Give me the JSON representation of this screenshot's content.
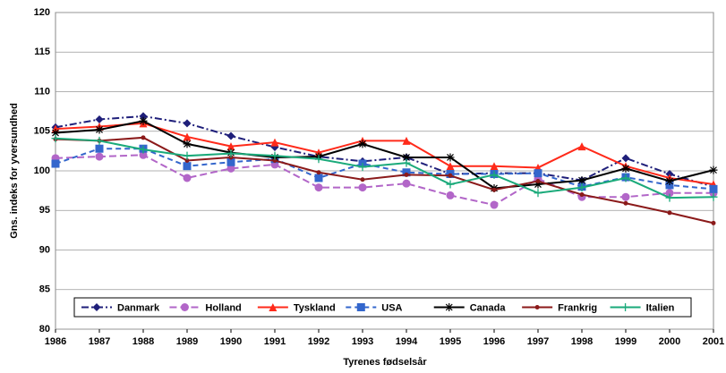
{
  "chart_data": {
    "type": "line",
    "x_label": "Tyrenes fødselsår",
    "y_label": "Gns. indeks for yversundhed",
    "x": [
      1986,
      1987,
      1988,
      1989,
      1990,
      1991,
      1992,
      1993,
      1994,
      1995,
      1996,
      1997,
      1998,
      1999,
      2000,
      2001
    ],
    "xlim": [
      1986,
      2001
    ],
    "xticks": [
      1986,
      1987,
      1988,
      1989,
      1990,
      1991,
      1992,
      1993,
      1994,
      1995,
      1996,
      1997,
      1998,
      1999,
      2000,
      2001
    ],
    "ylim": [
      80,
      120
    ],
    "yticks": [
      80,
      85,
      90,
      95,
      100,
      105,
      110,
      115,
      120
    ],
    "grid": true,
    "legend": "bottom",
    "series": [
      {
        "name": "Danmark",
        "color": "#1f1f7a",
        "marker": "diamond",
        "dash": "8,3,2,3",
        "values": [
          105.5,
          106.5,
          106.9,
          106,
          104.4,
          103,
          101.8,
          101.2,
          101.7,
          99.6,
          99.7,
          99.7,
          98.8,
          101.6,
          99.6,
          98
        ]
      },
      {
        "name": "Holland",
        "color": "#b266c8",
        "marker": "circle",
        "dash": "8,4",
        "values": [
          101.6,
          101.8,
          102,
          99.1,
          100.3,
          100.8,
          97.9,
          97.9,
          98.4,
          96.9,
          95.7,
          99,
          96.7,
          96.7,
          97.2,
          97.2
        ]
      },
      {
        "name": "Tyskland",
        "color": "#ff2a1a",
        "marker": "triangle",
        "dash": "",
        "values": [
          105.3,
          105.6,
          106,
          104.3,
          103.1,
          103.6,
          102.3,
          103.8,
          103.8,
          100.6,
          100.6,
          100.4,
          103.1,
          100.6,
          99.1,
          98.3
        ]
      },
      {
        "name": "USA",
        "color": "#3366cc",
        "marker": "square",
        "dash": "6,4",
        "values": [
          100.9,
          102.8,
          102.8,
          100.6,
          101.1,
          101.5,
          99.1,
          100.9,
          99.8,
          99.6,
          99.6,
          99.7,
          98,
          99.2,
          98.2,
          97.7
        ]
      },
      {
        "name": "Canada",
        "color": "#000000",
        "marker": "star",
        "dash": "",
        "values": [
          104.8,
          105.2,
          106.3,
          103.4,
          102.3,
          101.7,
          101.8,
          103.4,
          101.7,
          101.7,
          97.8,
          98.3,
          98.8,
          100.3,
          98.7,
          100.1
        ]
      },
      {
        "name": "Frankrig",
        "color": "#8b1a1a",
        "marker": "dot",
        "dash": "",
        "values": [
          104,
          103.8,
          104.2,
          101.3,
          101.7,
          101.3,
          99.8,
          98.9,
          99.5,
          99.4,
          97.6,
          98.7,
          97,
          95.9,
          94.7,
          93.4
        ]
      },
      {
        "name": "Italien",
        "color": "#1aaa7a",
        "marker": "plus",
        "dash": "",
        "values": [
          104.1,
          103.8,
          102.7,
          101.9,
          102.2,
          101.9,
          101.5,
          100.5,
          101,
          98.3,
          99.5,
          97.2,
          97.9,
          99.1,
          96.6,
          96.7
        ]
      }
    ]
  }
}
